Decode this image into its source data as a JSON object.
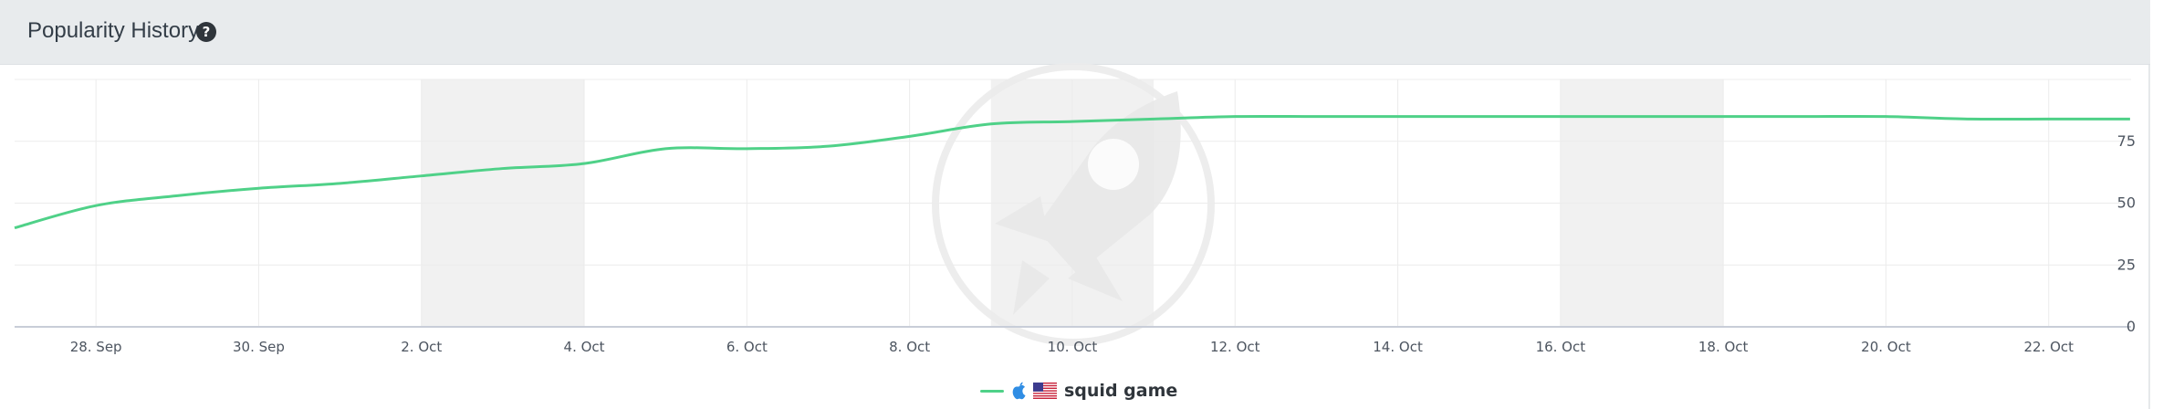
{
  "header": {
    "title": "Popularity History",
    "help_icon": "question-circle-icon"
  },
  "legend": {
    "label": "squid game",
    "line_color": "#4fd188",
    "platform_icon": "apple-icon",
    "country_icon": "us-flag-icon"
  },
  "watermark_icon": "rocket-icon",
  "chart_data": {
    "type": "line",
    "title": "",
    "xlabel": "",
    "ylabel": "",
    "y_tick_labels": [
      "0",
      "25",
      "50",
      "75"
    ],
    "x_tick_labels": [
      "28. Sep",
      "30. Sep",
      "2. Oct",
      "4. Oct",
      "6. Oct",
      "8. Oct",
      "10. Oct",
      "12. Oct",
      "14. Oct",
      "16. Oct",
      "18. Oct",
      "20. Oct",
      "22. Oct"
    ],
    "x_range": [
      "2021-09-27",
      "2021-10-23"
    ],
    "ylim": [
      0,
      100
    ],
    "grid": true,
    "legend_position": "bottom-center",
    "weekend_bands": [
      [
        "2021-10-02",
        "2021-10-04"
      ],
      [
        "2021-10-09",
        "2021-10-11"
      ],
      [
        "2021-10-16",
        "2021-10-18"
      ]
    ],
    "series": [
      {
        "name": "squid game",
        "color": "#4fd188",
        "points": [
          [
            "2021-09-27",
            40
          ],
          [
            "2021-09-28",
            49
          ],
          [
            "2021-09-29",
            53
          ],
          [
            "2021-09-30",
            56
          ],
          [
            "2021-10-01",
            58
          ],
          [
            "2021-10-02",
            61
          ],
          [
            "2021-10-03",
            64
          ],
          [
            "2021-10-04",
            66
          ],
          [
            "2021-10-05",
            72
          ],
          [
            "2021-10-06",
            72
          ],
          [
            "2021-10-07",
            73
          ],
          [
            "2021-10-08",
            77
          ],
          [
            "2021-10-09",
            82
          ],
          [
            "2021-10-10",
            83
          ],
          [
            "2021-10-11",
            84
          ],
          [
            "2021-10-12",
            85
          ],
          [
            "2021-10-13",
            85
          ],
          [
            "2021-10-14",
            85
          ],
          [
            "2021-10-15",
            85
          ],
          [
            "2021-10-16",
            85
          ],
          [
            "2021-10-17",
            85
          ],
          [
            "2021-10-18",
            85
          ],
          [
            "2021-10-19",
            85
          ],
          [
            "2021-10-20",
            85
          ],
          [
            "2021-10-21",
            84
          ],
          [
            "2021-10-22",
            84
          ],
          [
            "2021-10-23",
            84
          ]
        ]
      }
    ]
  }
}
